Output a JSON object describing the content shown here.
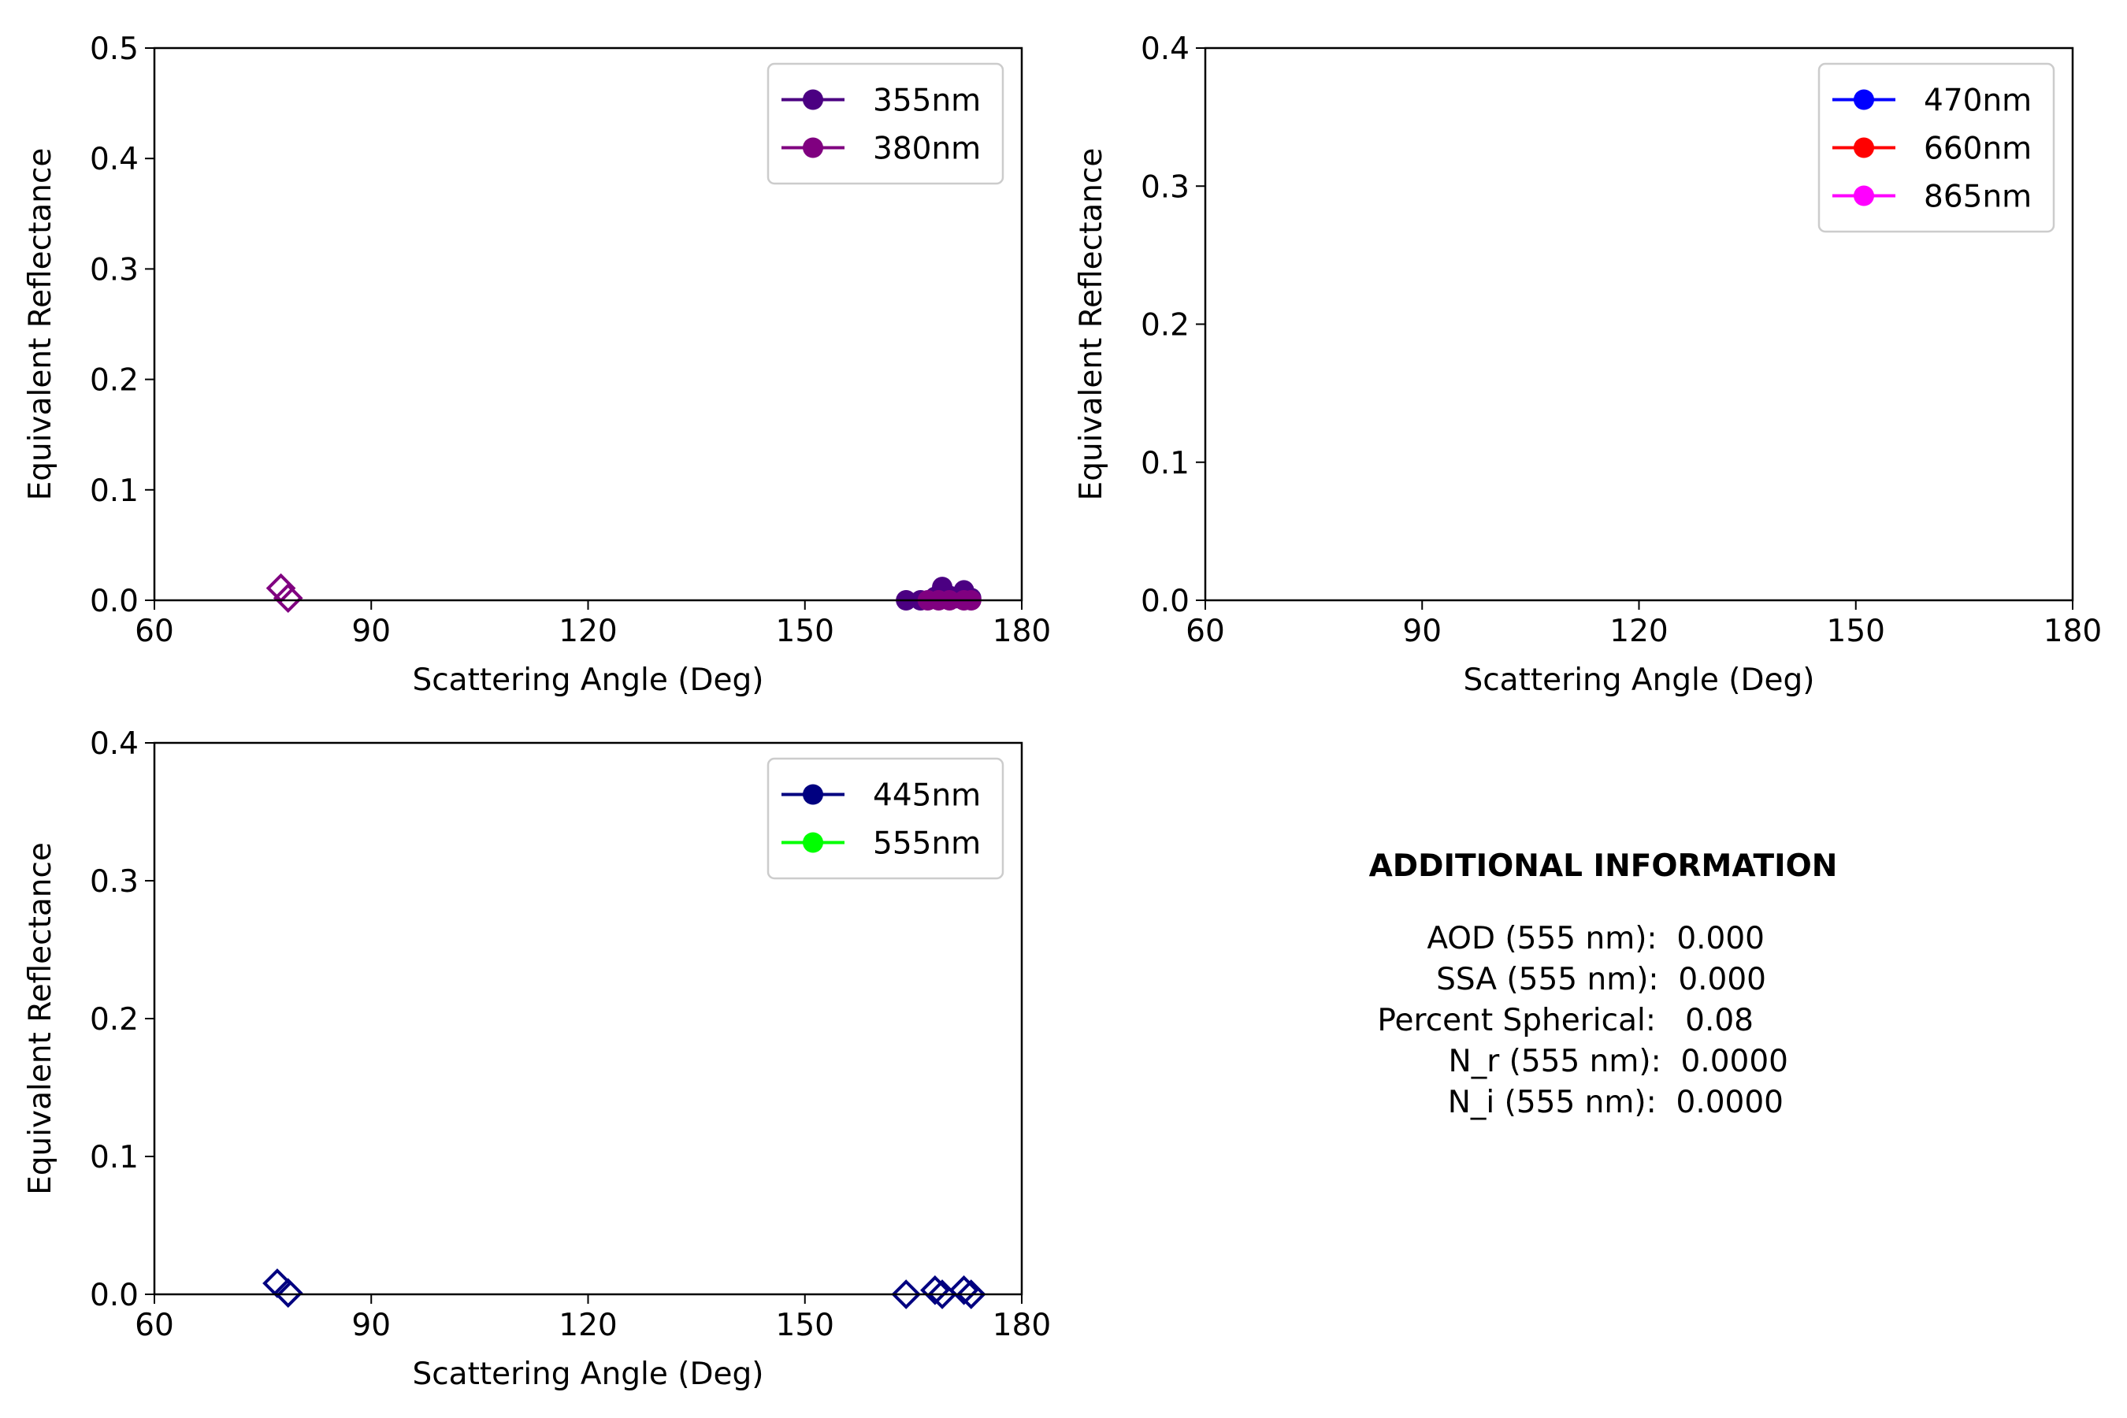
{
  "colors": {
    "355nm": "#4b0082",
    "380nm": "#800080",
    "445nm": "#000080",
    "470nm": "#0000ff",
    "555nm": "#00ff00",
    "660nm": "#ff0000",
    "865nm": "#ff00ff"
  },
  "chart_data": [
    {
      "type": "scatter",
      "xlabel": "Scattering Angle (Deg)",
      "ylabel": "Equivalent Reflectance",
      "xlim": [
        60,
        180
      ],
      "ylim": [
        0,
        0.5
      ],
      "xticks": [
        "60",
        "90",
        "120",
        "150",
        "180"
      ],
      "yticks": [
        "0.0",
        "0.1",
        "0.2",
        "0.3",
        "0.4",
        "0.5"
      ],
      "legend_position": "top-right",
      "legend": [
        {
          "label": "355nm",
          "color": "#4b0082"
        },
        {
          "label": "380nm",
          "color": "#800080"
        }
      ],
      "series": [
        {
          "color": "#4b0082",
          "marker": "circle",
          "x": [
            164,
            166,
            168,
            169,
            170,
            171,
            172,
            173
          ],
          "y": [
            0.0,
            0.0,
            0.003,
            0.012,
            0.004,
            0.002,
            0.009,
            0.002
          ]
        },
        {
          "color": "#800080",
          "marker": "circle",
          "x": [
            167,
            168.5,
            170,
            172,
            173
          ],
          "y": [
            0.0,
            0.0,
            0.0,
            0.0,
            0.0
          ]
        },
        {
          "color": "#800080",
          "marker": "diamond-open",
          "x": [
            77.5,
            78.5
          ],
          "y": [
            0.011,
            0.002
          ]
        }
      ]
    },
    {
      "type": "scatter",
      "xlabel": "Scattering Angle (Deg)",
      "ylabel": "Equivalent Reflectance",
      "xlim": [
        60,
        180
      ],
      "ylim": [
        0,
        0.4
      ],
      "xticks": [
        "60",
        "90",
        "120",
        "150",
        "180"
      ],
      "yticks": [
        "0.0",
        "0.1",
        "0.2",
        "0.3",
        "0.4"
      ],
      "legend_position": "top-right",
      "legend": [
        {
          "label": "470nm",
          "color": "#0000ff"
        },
        {
          "label": "660nm",
          "color": "#ff0000"
        },
        {
          "label": "865nm",
          "color": "#ff00ff"
        }
      ],
      "series": []
    },
    {
      "type": "scatter",
      "xlabel": "Scattering Angle (Deg)",
      "ylabel": "Equivalent Reflectance",
      "xlim": [
        60,
        180
      ],
      "ylim": [
        0,
        0.4
      ],
      "xticks": [
        "60",
        "90",
        "120",
        "150",
        "180"
      ],
      "yticks": [
        "0.0",
        "0.1",
        "0.2",
        "0.3",
        "0.4"
      ],
      "legend_position": "top-right",
      "legend": [
        {
          "label": "445nm",
          "color": "#000080"
        },
        {
          "label": "555nm",
          "color": "#00ff00"
        }
      ],
      "series": [
        {
          "color": "#000080",
          "marker": "diamond-open",
          "x": [
            164,
            168,
            169,
            172,
            173
          ],
          "y": [
            0.0,
            0.003,
            0.0,
            0.003,
            0.0
          ]
        },
        {
          "color": "#000080",
          "marker": "diamond-open",
          "x": [
            77,
            78.5
          ],
          "y": [
            0.008,
            0.001
          ]
        }
      ]
    }
  ],
  "info": {
    "title": "ADDITIONAL INFORMATION",
    "lines": [
      "AOD (555 nm):  0.000",
      "SSA (555 nm):  0.000",
      "Percent Spherical:   0.08",
      "N_r (555 nm):  0.0000",
      "N_i (555 nm):  0.0000"
    ]
  }
}
